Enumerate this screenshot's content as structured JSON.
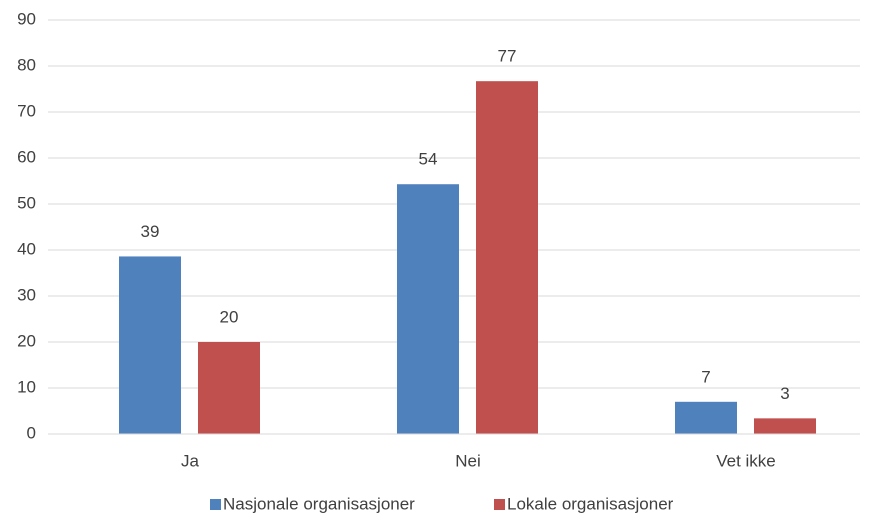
{
  "chart_data": {
    "type": "bar",
    "categories": [
      "Ja",
      "Nei",
      "Vet ikke"
    ],
    "series": [
      {
        "name": "Nasjonale organisasjoner",
        "color": "#4f81bd",
        "values": [
          38.6,
          54.3,
          7.0
        ],
        "value_labels": [
          "39",
          "54",
          "7"
        ]
      },
      {
        "name": "Lokale organisasjoner",
        "color": "#c0504d",
        "values": [
          20,
          76.7,
          3.4
        ],
        "value_labels": [
          "20",
          "77",
          "3"
        ]
      }
    ],
    "ylim": [
      0,
      90
    ],
    "yticks": [
      0,
      10,
      20,
      30,
      40,
      50,
      60,
      70,
      80,
      90
    ],
    "grid": true,
    "legend": "bottom"
  }
}
